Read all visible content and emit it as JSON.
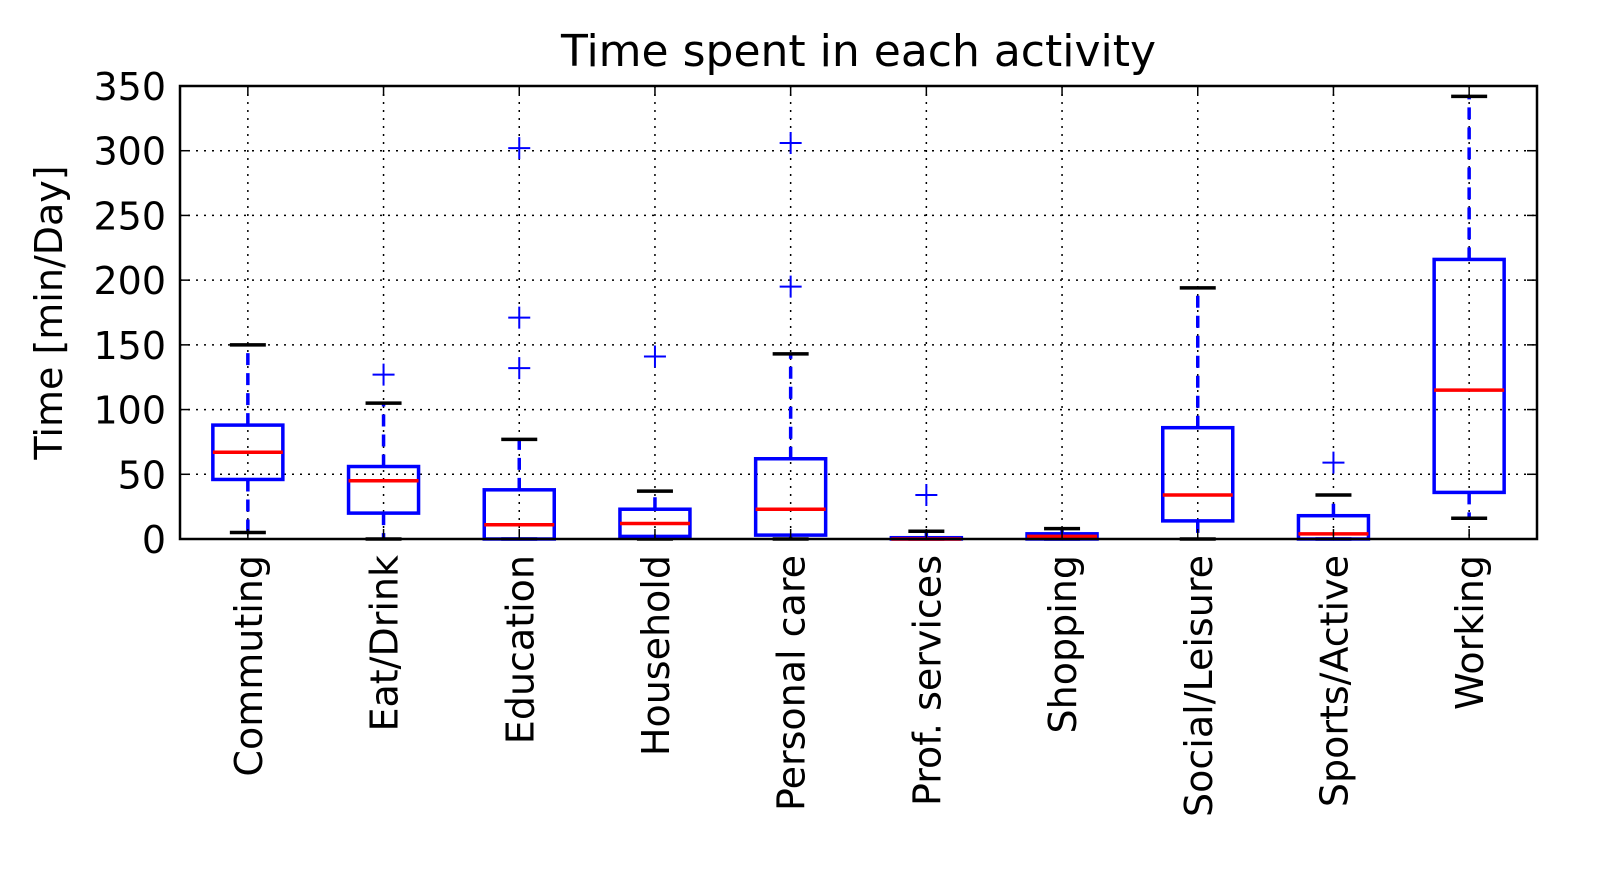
{
  "chart_data": {
    "type": "box",
    "title": "Time spent in each activity",
    "xlabel": "",
    "ylabel": "Time [min/Day]",
    "ylim": [
      0,
      350
    ],
    "yticks": [
      0,
      50,
      100,
      150,
      200,
      250,
      300,
      350
    ],
    "grid": true,
    "categories": [
      "Commuting",
      "Eat/Drink",
      "Education",
      "Household",
      "Personal care",
      "Prof. services",
      "Shopping",
      "Social/Leisure",
      "Sports/Active",
      "Working"
    ],
    "boxes": [
      {
        "category": "Commuting",
        "whisker_low": 5,
        "q1": 46,
        "median": 67,
        "q3": 88,
        "whisker_high": 150,
        "outliers": []
      },
      {
        "category": "Eat/Drink",
        "whisker_low": 0,
        "q1": 20,
        "median": 45,
        "q3": 56,
        "whisker_high": 105,
        "outliers": [
          127
        ]
      },
      {
        "category": "Education",
        "whisker_low": 0,
        "q1": 0,
        "median": 11,
        "q3": 38,
        "whisker_high": 77,
        "outliers": [
          132,
          171,
          302
        ]
      },
      {
        "category": "Household",
        "whisker_low": 0,
        "q1": 2,
        "median": 12,
        "q3": 23,
        "whisker_high": 37,
        "outliers": [
          141
        ]
      },
      {
        "category": "Personal care",
        "whisker_low": 0,
        "q1": 3,
        "median": 23,
        "q3": 62,
        "whisker_high": 143,
        "outliers": [
          195,
          306
        ]
      },
      {
        "category": "Prof. services",
        "whisker_low": 0,
        "q1": 0,
        "median": 0,
        "q3": 1,
        "whisker_high": 6,
        "outliers": [
          34
        ]
      },
      {
        "category": "Shopping",
        "whisker_low": 0,
        "q1": 0,
        "median": 2,
        "q3": 4,
        "whisker_high": 8,
        "outliers": []
      },
      {
        "category": "Social/Leisure",
        "whisker_low": 0,
        "q1": 14,
        "median": 34,
        "q3": 86,
        "whisker_high": 194,
        "outliers": []
      },
      {
        "category": "Sports/Active",
        "whisker_low": 0,
        "q1": 0,
        "median": 4,
        "q3": 18,
        "whisker_high": 34,
        "outliers": [
          59
        ]
      },
      {
        "category": "Working",
        "whisker_low": 16,
        "q1": 36,
        "median": 115,
        "q3": 216,
        "whisker_high": 342,
        "outliers": []
      }
    ],
    "colors": {
      "box": "#0000ff",
      "median": "#ff0000",
      "whisker_cap": "#000000",
      "outlier": "#0000ff"
    }
  }
}
